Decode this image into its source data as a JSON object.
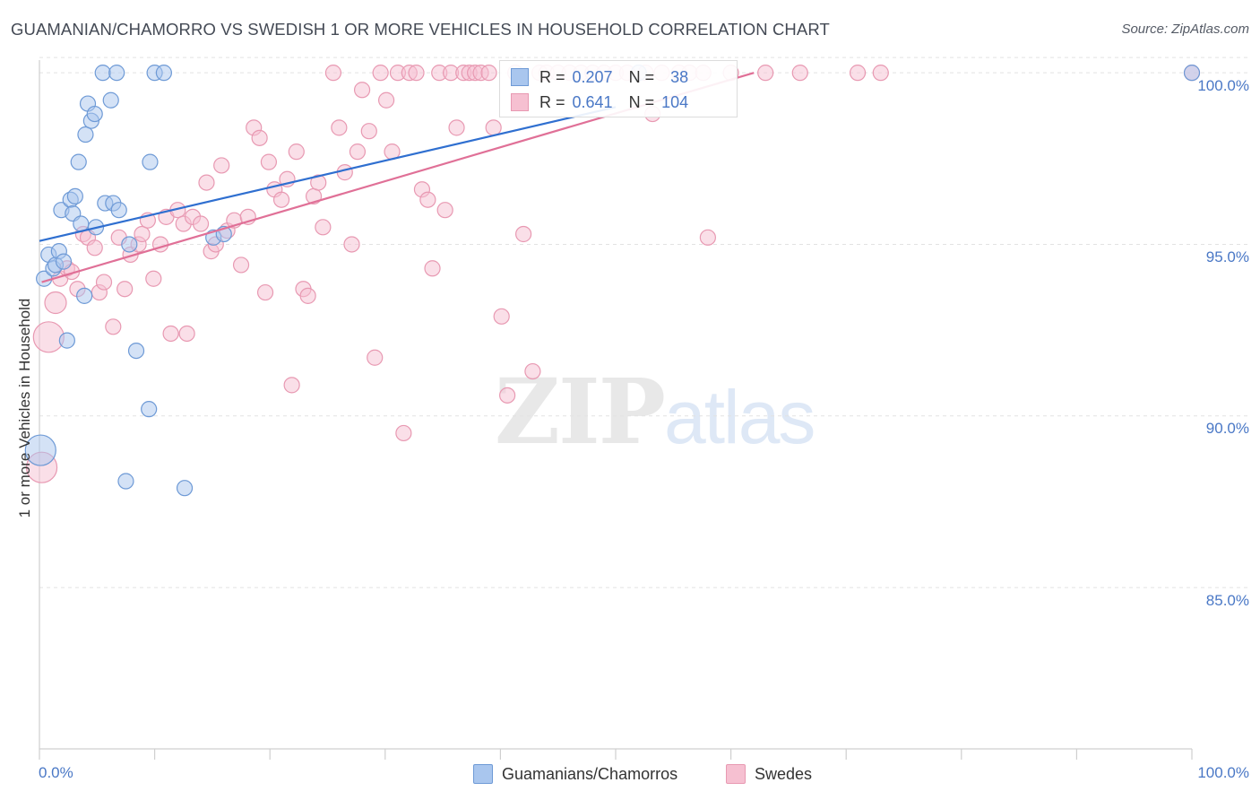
{
  "title": "GUAMANIAN/CHAMORRO VS SWEDISH 1 OR MORE VEHICLES IN HOUSEHOLD CORRELATION CHART",
  "source": "Source: ZipAtlas.com",
  "watermark": {
    "zip": "ZIP",
    "atlas": "atlas"
  },
  "colors": {
    "blue_fill": "#a9c6ee",
    "blue_stroke": "#6e9ad6",
    "blue_line": "#2f6fd0",
    "pink_fill": "#f6c0d1",
    "pink_stroke": "#e899b2",
    "pink_line": "#e07097",
    "axis_label": "#4a78c6",
    "grid": "#e2e2e2"
  },
  "legend": {
    "rows": [
      {
        "series": "blue",
        "r_label": "R =",
        "r_value": "0.207",
        "n_label": "N =",
        "n_value": "38"
      },
      {
        "series": "pink",
        "r_label": "R =",
        "r_value": "0.641",
        "n_label": "N =",
        "n_value": "104"
      }
    ],
    "bottom": [
      "Guamanians/Chamorros",
      "Swedes"
    ]
  },
  "chart_data": {
    "type": "scatter",
    "title": "GUAMANIAN/CHAMORRO VS SWEDISH 1 OR MORE VEHICLES IN HOUSEHOLD CORRELATION CHART",
    "xlabel": "",
    "ylabel": "1 or more Vehicles in Household",
    "x_tick_labels": {
      "min": "0.0%",
      "max": "100.0%"
    },
    "y_tick_labels": [
      "100.0%",
      "95.0%",
      "90.0%",
      "85.0%"
    ],
    "y_ticks": [
      100,
      95,
      90,
      85
    ],
    "xlim": [
      0,
      100
    ],
    "ylim": [
      80.3,
      100.5
    ],
    "series": [
      {
        "name": "Guamanians/Chamorros",
        "color": "blue",
        "r": 0.207,
        "n": 38,
        "trend": {
          "x": [
            0,
            50
          ],
          "y": [
            95.1,
            99.0
          ]
        },
        "points": [
          {
            "x": 0.1,
            "y": 89.0,
            "s": "L"
          },
          {
            "x": 0.4,
            "y": 94.0,
            "s": "S"
          },
          {
            "x": 0.8,
            "y": 94.7,
            "s": "S"
          },
          {
            "x": 1.2,
            "y": 94.3,
            "s": "S"
          },
          {
            "x": 1.4,
            "y": 94.4,
            "s": "S"
          },
          {
            "x": 1.7,
            "y": 94.8,
            "s": "S"
          },
          {
            "x": 1.9,
            "y": 96.0,
            "s": "S"
          },
          {
            "x": 2.1,
            "y": 94.5,
            "s": "S"
          },
          {
            "x": 2.4,
            "y": 92.2,
            "s": "S"
          },
          {
            "x": 2.7,
            "y": 96.3,
            "s": "S"
          },
          {
            "x": 2.9,
            "y": 95.9,
            "s": "S"
          },
          {
            "x": 3.1,
            "y": 96.4,
            "s": "S"
          },
          {
            "x": 3.4,
            "y": 97.4,
            "s": "S"
          },
          {
            "x": 3.6,
            "y": 95.6,
            "s": "S"
          },
          {
            "x": 3.9,
            "y": 93.5,
            "s": "S"
          },
          {
            "x": 4.0,
            "y": 98.2,
            "s": "S"
          },
          {
            "x": 4.2,
            "y": 99.1,
            "s": "S"
          },
          {
            "x": 4.5,
            "y": 98.6,
            "s": "S"
          },
          {
            "x": 4.9,
            "y": 95.5,
            "s": "S"
          },
          {
            "x": 4.8,
            "y": 98.8,
            "s": "S"
          },
          {
            "x": 5.5,
            "y": 100.0,
            "s": "S"
          },
          {
            "x": 5.7,
            "y": 96.2,
            "s": "S"
          },
          {
            "x": 6.2,
            "y": 99.2,
            "s": "S"
          },
          {
            "x": 6.4,
            "y": 96.2,
            "s": "S"
          },
          {
            "x": 6.7,
            "y": 100.0,
            "s": "S"
          },
          {
            "x": 6.9,
            "y": 96.0,
            "s": "S"
          },
          {
            "x": 7.5,
            "y": 88.1,
            "s": "S"
          },
          {
            "x": 7.8,
            "y": 95.0,
            "s": "S"
          },
          {
            "x": 8.4,
            "y": 91.9,
            "s": "S"
          },
          {
            "x": 9.5,
            "y": 90.2,
            "s": "S"
          },
          {
            "x": 9.6,
            "y": 97.4,
            "s": "S"
          },
          {
            "x": 10.0,
            "y": 100.0,
            "s": "S"
          },
          {
            "x": 10.8,
            "y": 100.0,
            "s": "S"
          },
          {
            "x": 12.6,
            "y": 87.9,
            "s": "S"
          },
          {
            "x": 15.1,
            "y": 95.2,
            "s": "S"
          },
          {
            "x": 16.0,
            "y": 95.3,
            "s": "S"
          },
          {
            "x": 100.0,
            "y": 100.0,
            "s": "S"
          },
          {
            "x": 52.0,
            "y": 100.0,
            "s": "S"
          }
        ]
      },
      {
        "name": "Swedes",
        "color": "pink",
        "r": 0.641,
        "n": 104,
        "trend": {
          "x": [
            0.2,
            62.0
          ],
          "y": [
            93.9,
            100.0
          ]
        },
        "points": [
          {
            "x": 0.2,
            "y": 88.5,
            "s": "L"
          },
          {
            "x": 0.8,
            "y": 92.3,
            "s": "L"
          },
          {
            "x": 1.4,
            "y": 93.3,
            "s": "M"
          },
          {
            "x": 1.8,
            "y": 94.0,
            "s": "S"
          },
          {
            "x": 2.4,
            "y": 94.3,
            "s": "S"
          },
          {
            "x": 2.8,
            "y": 94.2,
            "s": "S"
          },
          {
            "x": 3.3,
            "y": 93.7,
            "s": "S"
          },
          {
            "x": 3.8,
            "y": 95.3,
            "s": "S"
          },
          {
            "x": 4.2,
            "y": 95.2,
            "s": "S"
          },
          {
            "x": 4.8,
            "y": 94.9,
            "s": "S"
          },
          {
            "x": 5.2,
            "y": 93.6,
            "s": "S"
          },
          {
            "x": 5.6,
            "y": 93.9,
            "s": "S"
          },
          {
            "x": 6.4,
            "y": 92.6,
            "s": "S"
          },
          {
            "x": 6.9,
            "y": 95.2,
            "s": "S"
          },
          {
            "x": 7.4,
            "y": 93.7,
            "s": "S"
          },
          {
            "x": 7.9,
            "y": 94.7,
            "s": "S"
          },
          {
            "x": 8.6,
            "y": 95.0,
            "s": "S"
          },
          {
            "x": 8.9,
            "y": 95.3,
            "s": "S"
          },
          {
            "x": 9.4,
            "y": 95.7,
            "s": "S"
          },
          {
            "x": 9.9,
            "y": 94.0,
            "s": "S"
          },
          {
            "x": 10.5,
            "y": 95.0,
            "s": "S"
          },
          {
            "x": 11.0,
            "y": 95.8,
            "s": "S"
          },
          {
            "x": 11.4,
            "y": 92.4,
            "s": "S"
          },
          {
            "x": 12.0,
            "y": 96.0,
            "s": "S"
          },
          {
            "x": 12.5,
            "y": 95.6,
            "s": "S"
          },
          {
            "x": 12.8,
            "y": 92.4,
            "s": "S"
          },
          {
            "x": 13.3,
            "y": 95.8,
            "s": "S"
          },
          {
            "x": 14.0,
            "y": 95.6,
            "s": "S"
          },
          {
            "x": 14.5,
            "y": 96.8,
            "s": "S"
          },
          {
            "x": 14.9,
            "y": 94.8,
            "s": "S"
          },
          {
            "x": 15.3,
            "y": 95.0,
            "s": "S"
          },
          {
            "x": 15.8,
            "y": 97.3,
            "s": "S"
          },
          {
            "x": 16.3,
            "y": 95.4,
            "s": "S"
          },
          {
            "x": 16.9,
            "y": 95.7,
            "s": "S"
          },
          {
            "x": 17.5,
            "y": 94.4,
            "s": "S"
          },
          {
            "x": 18.1,
            "y": 95.8,
            "s": "S"
          },
          {
            "x": 18.6,
            "y": 98.4,
            "s": "S"
          },
          {
            "x": 19.1,
            "y": 98.1,
            "s": "S"
          },
          {
            "x": 19.6,
            "y": 93.6,
            "s": "S"
          },
          {
            "x": 19.9,
            "y": 97.4,
            "s": "S"
          },
          {
            "x": 20.4,
            "y": 96.6,
            "s": "S"
          },
          {
            "x": 21.0,
            "y": 96.3,
            "s": "S"
          },
          {
            "x": 21.5,
            "y": 96.9,
            "s": "S"
          },
          {
            "x": 21.9,
            "y": 90.9,
            "s": "S"
          },
          {
            "x": 22.3,
            "y": 97.7,
            "s": "S"
          },
          {
            "x": 22.9,
            "y": 93.7,
            "s": "S"
          },
          {
            "x": 23.3,
            "y": 93.5,
            "s": "S"
          },
          {
            "x": 23.8,
            "y": 96.4,
            "s": "S"
          },
          {
            "x": 24.2,
            "y": 96.8,
            "s": "S"
          },
          {
            "x": 24.6,
            "y": 95.5,
            "s": "S"
          },
          {
            "x": 25.5,
            "y": 100.0,
            "s": "S"
          },
          {
            "x": 26.0,
            "y": 98.4,
            "s": "S"
          },
          {
            "x": 26.5,
            "y": 97.1,
            "s": "S"
          },
          {
            "x": 27.1,
            "y": 95.0,
            "s": "S"
          },
          {
            "x": 27.6,
            "y": 97.7,
            "s": "S"
          },
          {
            "x": 28.0,
            "y": 99.5,
            "s": "S"
          },
          {
            "x": 28.6,
            "y": 98.3,
            "s": "S"
          },
          {
            "x": 29.1,
            "y": 91.7,
            "s": "S"
          },
          {
            "x": 29.6,
            "y": 100.0,
            "s": "S"
          },
          {
            "x": 30.1,
            "y": 99.2,
            "s": "S"
          },
          {
            "x": 30.6,
            "y": 97.7,
            "s": "S"
          },
          {
            "x": 31.1,
            "y": 100.0,
            "s": "S"
          },
          {
            "x": 31.6,
            "y": 89.5,
            "s": "S"
          },
          {
            "x": 32.1,
            "y": 100.0,
            "s": "S"
          },
          {
            "x": 32.7,
            "y": 100.0,
            "s": "S"
          },
          {
            "x": 33.2,
            "y": 96.6,
            "s": "S"
          },
          {
            "x": 33.7,
            "y": 96.3,
            "s": "S"
          },
          {
            "x": 34.1,
            "y": 94.3,
            "s": "S"
          },
          {
            "x": 34.7,
            "y": 100.0,
            "s": "S"
          },
          {
            "x": 35.2,
            "y": 96.0,
            "s": "S"
          },
          {
            "x": 35.7,
            "y": 100.0,
            "s": "S"
          },
          {
            "x": 36.2,
            "y": 98.4,
            "s": "S"
          },
          {
            "x": 36.8,
            "y": 100.0,
            "s": "S"
          },
          {
            "x": 37.3,
            "y": 100.0,
            "s": "S"
          },
          {
            "x": 37.8,
            "y": 100.0,
            "s": "S"
          },
          {
            "x": 38.3,
            "y": 100.0,
            "s": "S"
          },
          {
            "x": 39.0,
            "y": 100.0,
            "s": "S"
          },
          {
            "x": 39.4,
            "y": 98.4,
            "s": "S"
          },
          {
            "x": 40.1,
            "y": 92.9,
            "s": "S"
          },
          {
            "x": 40.6,
            "y": 90.6,
            "s": "S"
          },
          {
            "x": 41.3,
            "y": 100.0,
            "s": "S"
          },
          {
            "x": 42.0,
            "y": 95.3,
            "s": "S"
          },
          {
            "x": 42.8,
            "y": 91.3,
            "s": "S"
          },
          {
            "x": 43.4,
            "y": 100.0,
            "s": "S"
          },
          {
            "x": 44.0,
            "y": 100.0,
            "s": "S"
          },
          {
            "x": 45.0,
            "y": 100.0,
            "s": "S"
          },
          {
            "x": 46.0,
            "y": 100.0,
            "s": "S"
          },
          {
            "x": 47.0,
            "y": 100.0,
            "s": "S"
          },
          {
            "x": 48.0,
            "y": 100.0,
            "s": "S"
          },
          {
            "x": 49.0,
            "y": 100.0,
            "s": "S"
          },
          {
            "x": 50.0,
            "y": 100.0,
            "s": "S"
          },
          {
            "x": 51.0,
            "y": 100.0,
            "s": "S"
          },
          {
            "x": 52.6,
            "y": 100.0,
            "s": "S"
          },
          {
            "x": 53.2,
            "y": 98.8,
            "s": "S"
          },
          {
            "x": 54.0,
            "y": 100.0,
            "s": "S"
          },
          {
            "x": 55.5,
            "y": 100.0,
            "s": "S"
          },
          {
            "x": 56.4,
            "y": 100.0,
            "s": "S"
          },
          {
            "x": 57.6,
            "y": 100.0,
            "s": "S"
          },
          {
            "x": 58.0,
            "y": 95.2,
            "s": "S"
          },
          {
            "x": 60.0,
            "y": 100.0,
            "s": "S"
          },
          {
            "x": 63.0,
            "y": 100.0,
            "s": "S"
          },
          {
            "x": 66.0,
            "y": 100.0,
            "s": "S"
          },
          {
            "x": 71.0,
            "y": 100.0,
            "s": "S"
          },
          {
            "x": 73.0,
            "y": 100.0,
            "s": "S"
          },
          {
            "x": 100.0,
            "y": 100.0,
            "s": "S"
          }
        ]
      }
    ]
  }
}
